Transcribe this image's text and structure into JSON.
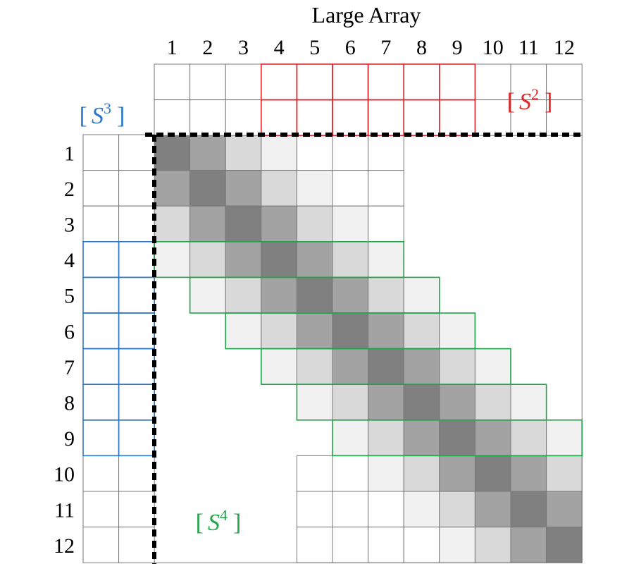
{
  "title": "Large Array",
  "column_labels": [
    "1",
    "2",
    "3",
    "4",
    "5",
    "6",
    "7",
    "8",
    "9",
    "10",
    "11",
    "12"
  ],
  "row_labels": [
    "1",
    "2",
    "3",
    "4",
    "5",
    "6",
    "7",
    "8",
    "9",
    "10",
    "11",
    "12"
  ],
  "bandwidth": 3,
  "colors": {
    "grid": "#777777",
    "divider": "#000000",
    "s2": "#e0262b",
    "s3": "#2d78c8",
    "s4": "#21a54a",
    "shade_by_distance": [
      "#808080",
      "#a3a3a3",
      "#d9d9d9",
      "#f1f1f1"
    ]
  },
  "labels": {
    "s2": {
      "open": "[",
      "base": "S",
      "sup": "2",
      "close": "]"
    },
    "s3": {
      "open": "[",
      "base": "S",
      "sup": "3",
      "close": "]"
    },
    "s4": {
      "open": "[",
      "base": "S",
      "sup": "4",
      "close": "]"
    }
  },
  "s2_columns": [
    4,
    9
  ],
  "s3_rows": [
    4,
    9
  ],
  "s4_rows": [
    4,
    9
  ]
}
